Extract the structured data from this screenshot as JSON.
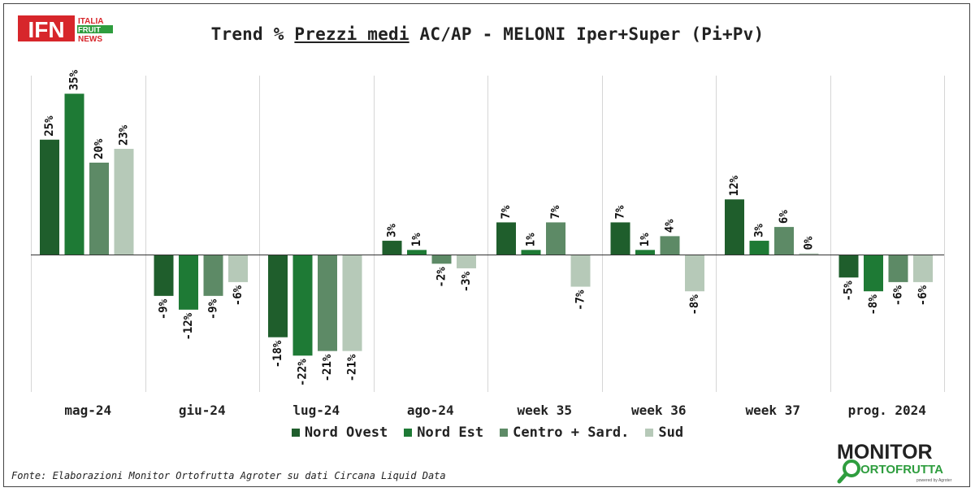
{
  "header": {
    "logo_ifn_main": "IFN",
    "logo_ifn_sub": [
      "ITALIA",
      "FRUIT",
      "NEWS"
    ],
    "title_prefix": "Trend % ",
    "title_underlined": "Prezzi medi",
    "title_suffix": " AC/AP - MELONI Iper+Super (Pi+Pv)"
  },
  "footer": {
    "source": "Fonte: Elaborazioni Monitor Ortofrutta Agroter su dati Circana Liquid Data",
    "logo_monitor_line1": "MONITOR",
    "logo_monitor_line2": "ORTOFRUTTA",
    "logo_monitor_tag": "powered by Agroter"
  },
  "colors": {
    "nord_ovest": "#1f5e2c",
    "nord_est": "#1e7a35",
    "centro_sard": "#5d8a66",
    "sud": "#b6c9b8",
    "logo_red": "#d7262b",
    "logo_green": "#2e9d3e"
  },
  "chart_data": {
    "type": "bar",
    "title": "Trend % Prezzi medi AC/AP - MELONI Iper+Super (Pi+Pv)",
    "categories": [
      "mag-24",
      "giu-24",
      "lug-24",
      "ago-24",
      "week 35",
      "week 36",
      "week 37",
      "prog. 2024"
    ],
    "series": [
      {
        "name": "Nord Ovest",
        "values": [
          25,
          -9,
          -18,
          3,
          7,
          7,
          12,
          -5
        ],
        "labels": [
          "25%",
          "-9%",
          "-18%",
          "3%",
          "7%",
          "7%",
          "12%",
          "-5%"
        ]
      },
      {
        "name": "Nord Est",
        "values": [
          35,
          -12,
          -22,
          1,
          1,
          1,
          3,
          -8
        ],
        "labels": [
          "35%",
          "-12%",
          "-22%",
          "1%",
          "1%",
          "1%",
          "3%",
          "-8%"
        ]
      },
      {
        "name": "Centro + Sard.",
        "values": [
          20,
          -9,
          -21,
          -2,
          7,
          4,
          6,
          -6
        ],
        "labels": [
          "20%",
          "-9%",
          "-21%",
          "-2%",
          "7%",
          "4%",
          "6%",
          "-6%"
        ]
      },
      {
        "name": "Sud",
        "values": [
          23,
          -6,
          -21,
          -3,
          -7,
          -8,
          0,
          -6
        ],
        "labels": [
          "23%",
          "-6%",
          "-21%",
          "-3%",
          "-7%",
          "-8%",
          "0%",
          "-6%"
        ]
      }
    ],
    "legend_position": "bottom",
    "grid": "vertical category separators"
  }
}
